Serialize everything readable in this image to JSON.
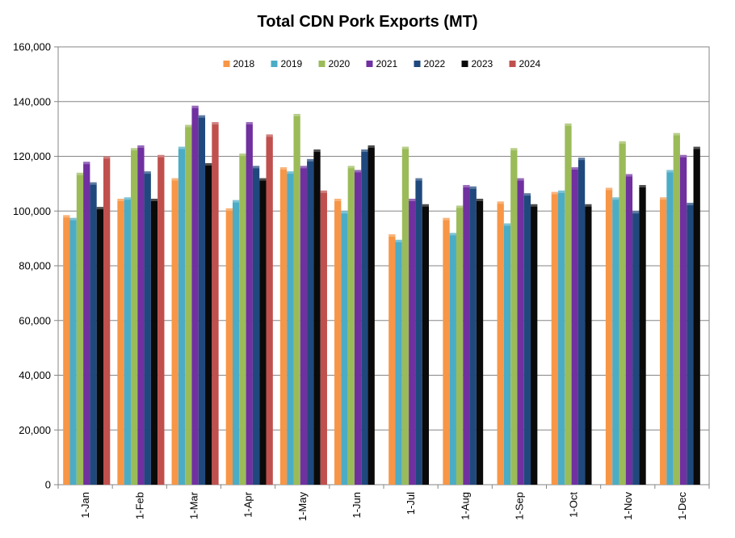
{
  "chart_data": {
    "type": "bar",
    "title": "Total CDN Pork Exports (MT)",
    "xlabel": "",
    "ylabel": "",
    "ylim": [
      0,
      160000
    ],
    "y_ticks": [
      0,
      20000,
      40000,
      60000,
      80000,
      100000,
      120000,
      140000,
      160000
    ],
    "y_tick_labels": [
      "0",
      "20,000",
      "40,000",
      "60,000",
      "80,000",
      "100,000",
      "120,000",
      "140,000",
      "160,000"
    ],
    "grid": true,
    "legend_position": "top",
    "categories": [
      "1-Jan",
      "1-Feb",
      "1-Mar",
      "1-Apr",
      "1-May",
      "1-Jun",
      "1-Jul",
      "1-Aug",
      "1-Sep",
      "1-Oct",
      "1-Nov",
      "1-Dec"
    ],
    "series": [
      {
        "name": "2018",
        "color": "#F79646",
        "values": [
          98500,
          104500,
          112000,
          101000,
          116000,
          104500,
          91500,
          97500,
          103500,
          107000,
          108500,
          105000
        ]
      },
      {
        "name": "2019",
        "color": "#4BACC6",
        "values": [
          97500,
          105000,
          123500,
          104000,
          114500,
          100000,
          89500,
          92000,
          95500,
          107500,
          105000,
          115000
        ]
      },
      {
        "name": "2020",
        "color": "#9BBB59",
        "values": [
          114000,
          123000,
          131500,
          121000,
          135500,
          116500,
          123500,
          102000,
          123000,
          132000,
          125500,
          128500
        ]
      },
      {
        "name": "2021",
        "color": "#7030A0",
        "values": [
          118000,
          124000,
          138500,
          132500,
          116500,
          115000,
          104500,
          109500,
          112000,
          116000,
          113500,
          120500
        ]
      },
      {
        "name": "2022",
        "color": "#1F497D",
        "values": [
          110500,
          114500,
          135000,
          116500,
          119000,
          122500,
          112000,
          109000,
          106500,
          119500,
          100000,
          103000
        ]
      },
      {
        "name": "2023",
        "color": "#0A0A0A",
        "values": [
          101500,
          104500,
          117500,
          112000,
          122500,
          124000,
          102500,
          104500,
          102500,
          102500,
          109500,
          123500
        ]
      },
      {
        "name": "2024",
        "color": "#C0504D",
        "values": [
          120000,
          120500,
          132500,
          128000,
          107500,
          null,
          null,
          null,
          null,
          null,
          null,
          null
        ]
      }
    ]
  }
}
